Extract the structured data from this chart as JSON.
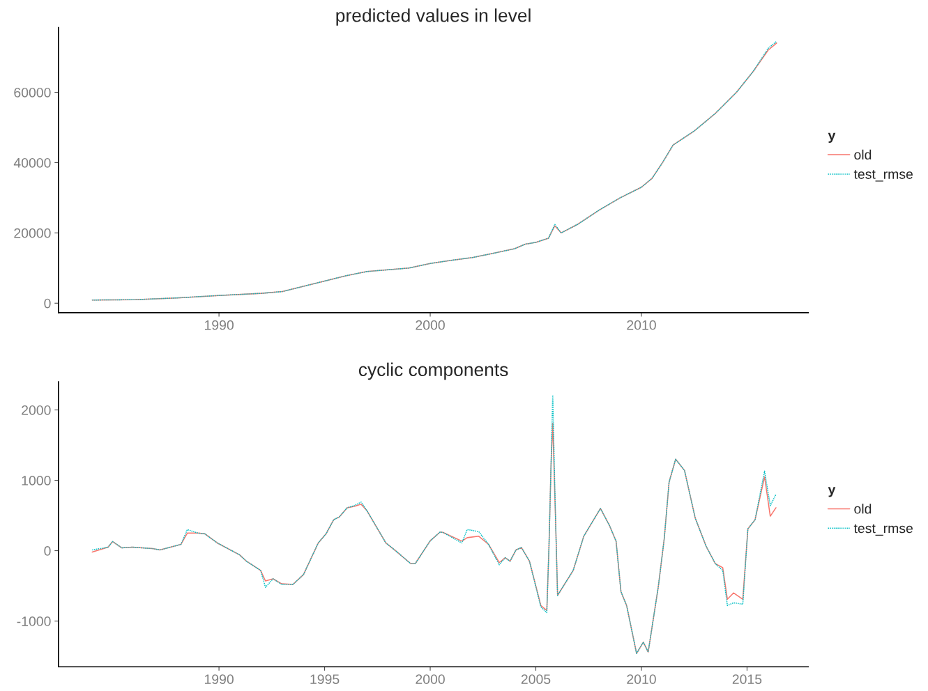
{
  "chart_data": [
    {
      "type": "line",
      "title": "predicted values in level",
      "legend_title": "y",
      "legend": "right",
      "grid": false,
      "x": [
        1984,
        1986,
        1988,
        1990,
        1992,
        1993,
        1994,
        1995,
        1996,
        1997,
        1998,
        1999,
        2000,
        2001,
        2002,
        2003,
        2004,
        2004.5,
        2005,
        2005.6,
        2005.9,
        2006.2,
        2007,
        2008,
        2009,
        2010,
        2010.5,
        2011,
        2011.5,
        2012.5,
        2013.5,
        2014.5,
        2015.3,
        2016,
        2016.4
      ],
      "series": [
        {
          "name": "old",
          "color": "#f8766d",
          "line_style": "solid",
          "values": [
            900,
            1000,
            1500,
            2200,
            2800,
            3300,
            4800,
            6300,
            7800,
            9000,
            9500,
            10000,
            11300,
            12200,
            13000,
            14200,
            15500,
            16800,
            17300,
            18500,
            22000,
            20000,
            22500,
            26500,
            30000,
            33000,
            35500,
            40000,
            45000,
            49000,
            54000,
            60000,
            66000,
            72000,
            74000
          ]
        },
        {
          "name": "test_rmse",
          "color": "#00bfc4",
          "line_style": "dotted",
          "values": [
            900,
            1000,
            1500,
            2200,
            2800,
            3300,
            4800,
            6300,
            7800,
            9000,
            9500,
            10000,
            11300,
            12200,
            13000,
            14200,
            15500,
            16800,
            17300,
            18500,
            22400,
            20000,
            22500,
            26500,
            30000,
            33000,
            35500,
            40000,
            45000,
            49000,
            54000,
            60000,
            66000,
            72500,
            74500
          ]
        }
      ],
      "xlim": [
        1982.4,
        2017.9
      ],
      "xticks": [
        1990,
        2000,
        2010
      ],
      "ylim": [
        -2700,
        78400
      ],
      "yticks": [
        0,
        20000,
        40000,
        60000
      ]
    },
    {
      "type": "line",
      "title": "cyclic components",
      "legend_title": "y",
      "legend": "right",
      "grid": false,
      "x": [
        1984,
        1984.75,
        1984.96,
        1985.4,
        1985.9,
        1986.85,
        1987.2,
        1988.2,
        1988.5,
        1989,
        1989.33,
        1989.92,
        1990.98,
        1991.3,
        1991.97,
        1992.2,
        1992.56,
        1992.97,
        1993.5,
        1994,
        1994.7,
        1995.07,
        1995.43,
        1995.7,
        1996.07,
        1996.4,
        1996.73,
        1997,
        1997.9,
        1998.36,
        1999.06,
        1999.3,
        2000,
        2000.47,
        2000.6,
        2001.5,
        2001.75,
        2002.3,
        2002.76,
        2003.27,
        2003.55,
        2003.78,
        2004.06,
        2004.32,
        2004.7,
        2005.24,
        2005.52,
        2005.62,
        2005.72,
        2005.8,
        2005.94,
        2006.03,
        2006.77,
        2007.27,
        2008.06,
        2008.5,
        2008.8,
        2009.03,
        2009.3,
        2009.77,
        2010.09,
        2010.32,
        2010.8,
        2011.08,
        2011.31,
        2011.62,
        2012.04,
        2012.55,
        2013.06,
        2013.5,
        2013.85,
        2014.07,
        2014.36,
        2014.8,
        2015.04,
        2015.38,
        2015.83,
        2016.1,
        2016.37
      ],
      "series": [
        {
          "name": "old",
          "color": "#f8766d",
          "line_style": "solid",
          "values": [
            -20,
            50,
            130,
            40,
            50,
            30,
            10,
            90,
            250,
            250,
            240,
            110,
            -60,
            -150,
            -280,
            -430,
            -400,
            -470,
            -480,
            -340,
            110,
            240,
            440,
            480,
            610,
            630,
            660,
            570,
            110,
            0,
            -180,
            -180,
            140,
            265,
            260,
            135,
            185,
            205,
            90,
            -170,
            -100,
            -150,
            10,
            45,
            -150,
            -780,
            -850,
            25,
            1205,
            1810,
            385,
            -635,
            -280,
            205,
            600,
            350,
            135,
            -580,
            -780,
            -1460,
            -1300,
            -1440,
            -510,
            170,
            975,
            1300,
            1140,
            460,
            65,
            -185,
            -240,
            -690,
            -600,
            -690,
            310,
            440,
            1050,
            490,
            610
          ]
        },
        {
          "name": "test_rmse",
          "color": "#00bfc4",
          "line_style": "dotted",
          "values": [
            10,
            50,
            130,
            40,
            50,
            30,
            10,
            90,
            300,
            250,
            240,
            110,
            -60,
            -150,
            -280,
            -520,
            -400,
            -480,
            -480,
            -340,
            110,
            240,
            440,
            480,
            610,
            640,
            690,
            570,
            110,
            0,
            -180,
            -180,
            140,
            265,
            260,
            110,
            300,
            270,
            90,
            -200,
            -100,
            -150,
            10,
            45,
            -150,
            -800,
            -880,
            25,
            1205,
            2210,
            385,
            -635,
            -280,
            205,
            600,
            350,
            135,
            -580,
            -780,
            -1460,
            -1300,
            -1440,
            -510,
            170,
            975,
            1300,
            1140,
            460,
            65,
            -185,
            -280,
            -780,
            -740,
            -760,
            310,
            440,
            1130,
            640,
            800
          ]
        }
      ],
      "xlim": [
        1982.4,
        2017.9
      ],
      "xticks": [
        1990,
        1995,
        2000,
        2005,
        2010,
        2015
      ],
      "ylim": [
        -1650,
        2400
      ],
      "yticks": [
        -1000,
        0,
        1000,
        2000
      ]
    }
  ]
}
